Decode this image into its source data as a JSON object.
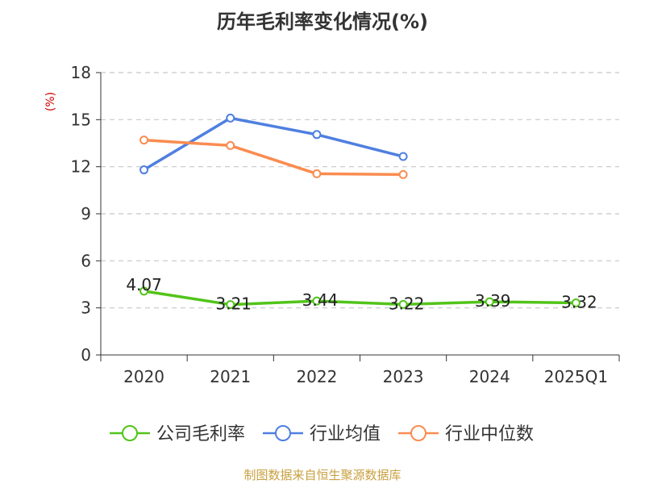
{
  "chart_data": {
    "type": "line",
    "title": "历年毛利率变化情况(%)",
    "ylabel": "(%)",
    "xlabel": "",
    "categories": [
      "2020",
      "2021",
      "2022",
      "2023",
      "2024",
      "2025Q1"
    ],
    "ylim": [
      0,
      18
    ],
    "yticks": [
      0,
      3,
      6,
      9,
      12,
      15,
      18
    ],
    "grid": true,
    "legend_position": "bottom",
    "series": [
      {
        "name": "公司毛利率",
        "color": "#52c41a",
        "values": [
          4.07,
          3.21,
          3.44,
          3.22,
          3.39,
          3.32
        ],
        "labels": [
          "4.07",
          "3.21",
          "3.44",
          "3.22",
          "3.39",
          "3.32"
        ]
      },
      {
        "name": "行业均值",
        "color": "#4f7fe0",
        "values": [
          11.8,
          15.1,
          14.05,
          12.65,
          null,
          null
        ]
      },
      {
        "name": "行业中位数",
        "color": "#fa8c50",
        "values": [
          13.7,
          13.35,
          11.55,
          11.5,
          null,
          null
        ]
      }
    ]
  },
  "source": "制图数据来自恒生聚源数据库"
}
